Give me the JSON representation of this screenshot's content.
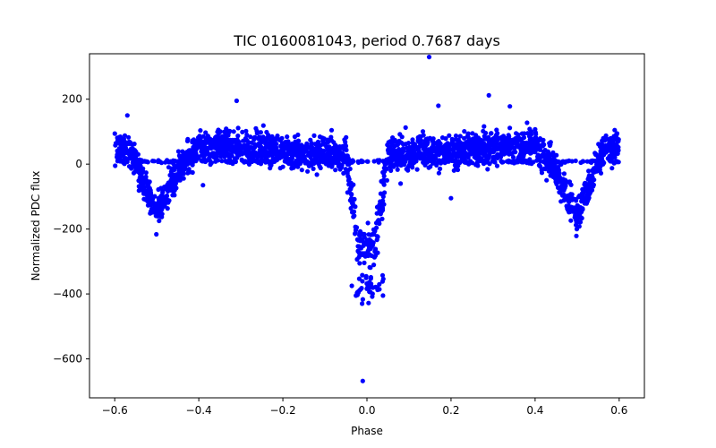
{
  "chart_data": {
    "type": "scatter",
    "title": "TIC 0160081043, period 0.7687 days",
    "xlabel": "Phase",
    "ylabel": "Normalized PDC flux",
    "xlim": [
      -0.66,
      0.66
    ],
    "ylim": [
      -720,
      340
    ],
    "xticks": [
      -0.6,
      -0.4,
      -0.2,
      0.0,
      0.2,
      0.4,
      0.6
    ],
    "xtick_labels": [
      "−0.6",
      "−0.4",
      "−0.2",
      "0.0",
      "0.2",
      "0.4",
      "0.6"
    ],
    "yticks": [
      -600,
      -400,
      -200,
      0,
      200
    ],
    "ytick_labels": [
      "−600",
      "−400",
      "−200",
      "0",
      "200"
    ],
    "grid": false,
    "marker_color": "#0000ff",
    "profile": {
      "description_points": [
        {
          "x": -0.6,
          "y": 50
        },
        {
          "x": -0.56,
          "y": 40
        },
        {
          "x": -0.5,
          "y": -160
        },
        {
          "x": -0.45,
          "y": -20
        },
        {
          "x": -0.4,
          "y": 60
        },
        {
          "x": -0.05,
          "y": 30
        },
        {
          "x": -0.02,
          "y": -250
        },
        {
          "x": 0.0,
          "y": -260
        },
        {
          "x": 0.02,
          "y": -250
        },
        {
          "x": 0.05,
          "y": 30
        },
        {
          "x": 0.4,
          "y": 60
        },
        {
          "x": 0.45,
          "y": -20
        },
        {
          "x": 0.5,
          "y": -160
        },
        {
          "x": 0.56,
          "y": 40
        },
        {
          "x": 0.6,
          "y": 50
        }
      ],
      "secondary_track_y": 8,
      "deep_eclipse_min_y": -460
    },
    "outliers": [
      {
        "x": 0.148,
        "y": 330
      },
      {
        "x": -0.01,
        "y": -668
      },
      {
        "x": 0.29,
        "y": 212
      },
      {
        "x": -0.31,
        "y": 195
      },
      {
        "x": 0.17,
        "y": 180
      },
      {
        "x": 0.34,
        "y": 178
      },
      {
        "x": 0.2,
        "y": -105
      },
      {
        "x": 0.08,
        "y": -60
      },
      {
        "x": -0.39,
        "y": -65
      },
      {
        "x": -0.57,
        "y": 150
      }
    ]
  }
}
